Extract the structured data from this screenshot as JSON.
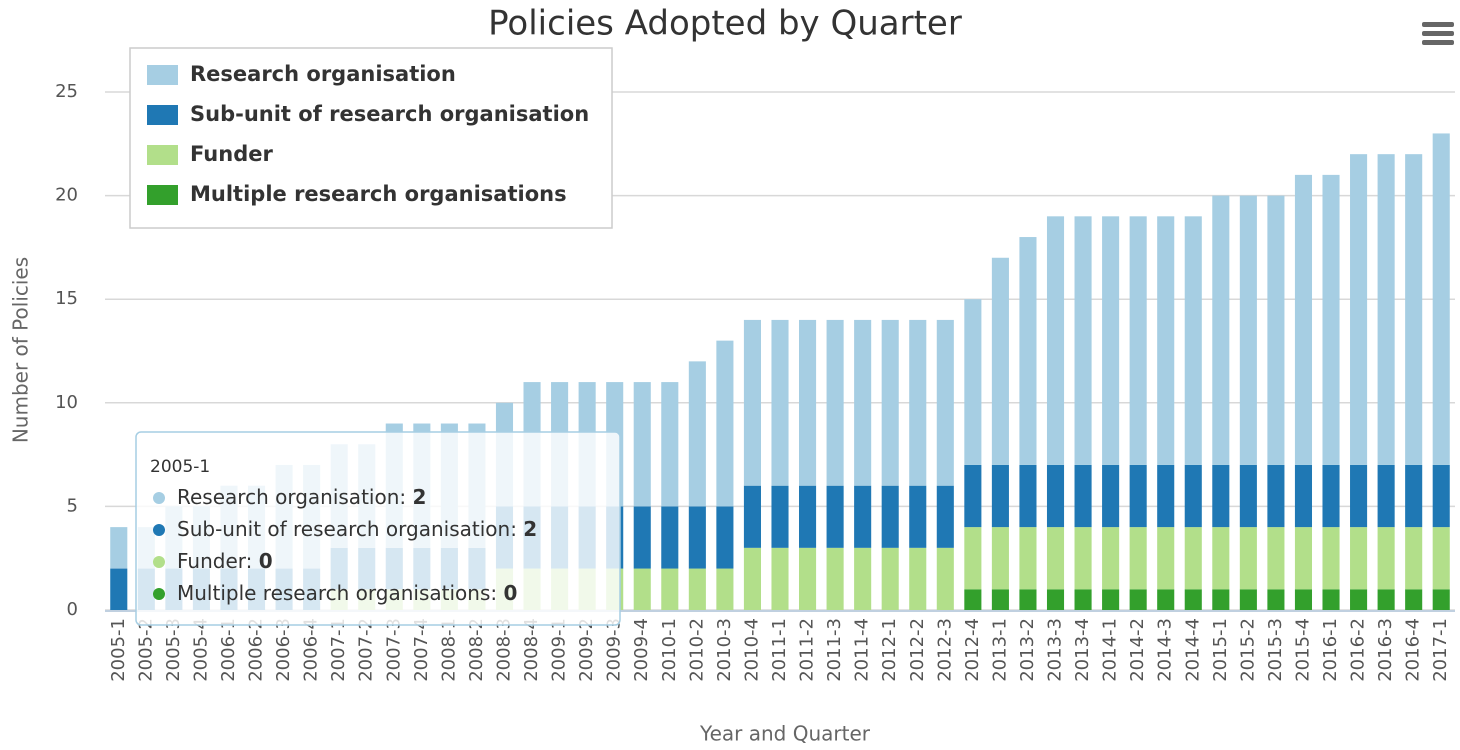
{
  "chart_data": {
    "type": "stacked_bar",
    "title": "Policies Adopted by Quarter",
    "x_label": "Year and Quarter",
    "y_label": "Number of Policies",
    "categories": [
      "2005-1",
      "2005-2",
      "2005-3",
      "2005-4",
      "2006-1",
      "2006-2",
      "2006-3",
      "2006-4",
      "2007-1",
      "2007-2",
      "2007-3",
      "2007-4",
      "2008-1",
      "2008-2",
      "2008-3",
      "2008-4",
      "2009-1",
      "2009-2",
      "2009-3",
      "2009-4",
      "2010-1",
      "2010-2",
      "2010-3",
      "2010-4",
      "2011-1",
      "2011-2",
      "2011-3",
      "2011-4",
      "2012-1",
      "2012-2",
      "2012-3",
      "2012-4",
      "2013-1",
      "2013-2",
      "2013-3",
      "2013-4",
      "2014-1",
      "2014-2",
      "2014-3",
      "2014-4",
      "2015-1",
      "2015-2",
      "2015-3",
      "2015-4",
      "2016-1",
      "2016-2",
      "2016-3",
      "2016-4",
      "2017-1"
    ],
    "series": [
      {
        "name": "Research organisation",
        "color": "#a6cee3",
        "values": [
          2,
          2,
          3,
          3,
          4,
          4,
          5,
          5,
          5,
          5,
          6,
          6,
          6,
          6,
          5,
          6,
          6,
          6,
          6,
          6,
          6,
          7,
          8,
          8,
          8,
          8,
          8,
          8,
          8,
          8,
          8,
          8,
          10,
          11,
          12,
          12,
          12,
          12,
          12,
          12,
          13,
          13,
          13,
          14,
          14,
          15,
          15,
          15,
          16
        ]
      },
      {
        "name": "Sub-unit of research organisation",
        "color": "#1f78b4",
        "values": [
          2,
          2,
          2,
          2,
          2,
          2,
          2,
          2,
          2,
          2,
          2,
          2,
          2,
          2,
          3,
          3,
          3,
          3,
          3,
          3,
          3,
          3,
          3,
          3,
          3,
          3,
          3,
          3,
          3,
          3,
          3,
          3,
          3,
          3,
          3,
          3,
          3,
          3,
          3,
          3,
          3,
          3,
          3,
          3,
          3,
          3,
          3,
          3,
          3
        ]
      },
      {
        "name": "Funder",
        "color": "#b2df8a",
        "values": [
          0,
          0,
          0,
          0,
          0,
          0,
          0,
          0,
          1,
          1,
          1,
          1,
          1,
          1,
          2,
          2,
          2,
          2,
          2,
          2,
          2,
          2,
          2,
          3,
          3,
          3,
          3,
          3,
          3,
          3,
          3,
          3,
          3,
          3,
          3,
          3,
          3,
          3,
          3,
          3,
          3,
          3,
          3,
          3,
          3,
          3,
          3,
          3,
          3
        ]
      },
      {
        "name": "Multiple research organisations",
        "color": "#33a02c",
        "values": [
          0,
          0,
          0,
          0,
          0,
          0,
          0,
          0,
          0,
          0,
          0,
          0,
          0,
          0,
          0,
          0,
          0,
          0,
          0,
          0,
          0,
          0,
          0,
          0,
          0,
          0,
          0,
          0,
          0,
          0,
          0,
          1,
          1,
          1,
          1,
          1,
          1,
          1,
          1,
          1,
          1,
          1,
          1,
          1,
          1,
          1,
          1,
          1,
          1
        ]
      }
    ],
    "ylim": [
      0,
      25
    ],
    "yticks": [
      0,
      5,
      10,
      15,
      20,
      25
    ],
    "grid": true,
    "legend": "top-left"
  }
}
